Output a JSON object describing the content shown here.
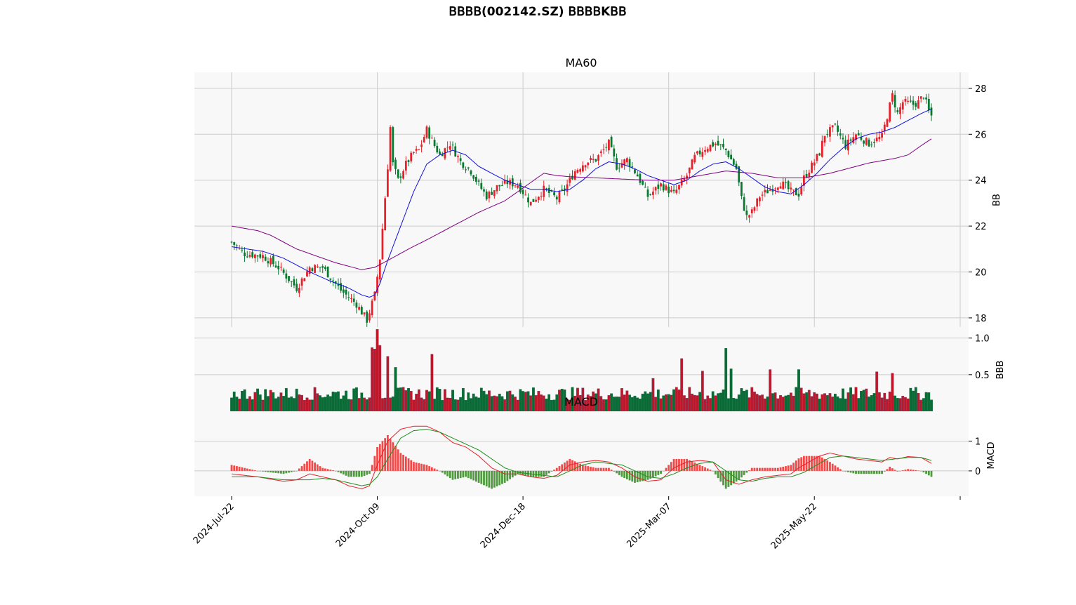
{
  "figure": {
    "title": "𝖡𝖡𝖡𝖡(002142.SZ) 𝖡𝖡𝖡𝖡K𝖡𝖡"
  },
  "chart_data": [
    {
      "type": "candlestick",
      "subtitle": "MA60",
      "ylabel": "𝖡𝖡",
      "ylim": [
        17.6,
        28.7
      ],
      "yticks": [
        18,
        20,
        22,
        24,
        26,
        28
      ],
      "x_tick_labels": [
        "2024-Jul-22",
        "2024-Oct-09",
        "2024-Dec-18",
        "2025-Mar-07",
        "2025-May-22"
      ],
      "x_tick_index": [
        0,
        56,
        112,
        168,
        224
      ],
      "n_bars": 270,
      "grid": true,
      "up_color": "#e8202a",
      "down_color": "#08792e",
      "close_anchors": [
        [
          0,
          21.3
        ],
        [
          5,
          20.8
        ],
        [
          12,
          20.7
        ],
        [
          18,
          20.2
        ],
        [
          25,
          19.3
        ],
        [
          30,
          20.2
        ],
        [
          35,
          20.2
        ],
        [
          42,
          19.2
        ],
        [
          48,
          18.6
        ],
        [
          52,
          17.9
        ],
        [
          55,
          19.0
        ],
        [
          57,
          20.6
        ],
        [
          58,
          21.9
        ],
        [
          60,
          24.6
        ],
        [
          61,
          26.3
        ],
        [
          62,
          24.7
        ],
        [
          64,
          24.0
        ],
        [
          67,
          24.7
        ],
        [
          70,
          25.2
        ],
        [
          72,
          25.3
        ],
        [
          75,
          26.2
        ],
        [
          78,
          25.5
        ],
        [
          80,
          25.1
        ],
        [
          84,
          25.6
        ],
        [
          88,
          24.8
        ],
        [
          92,
          24.4
        ],
        [
          95,
          23.8
        ],
        [
          98,
          23.3
        ],
        [
          102,
          23.7
        ],
        [
          106,
          23.9
        ],
        [
          110,
          23.8
        ],
        [
          115,
          23.0
        ],
        [
          120,
          23.6
        ],
        [
          125,
          23.2
        ],
        [
          128,
          23.6
        ],
        [
          132,
          24.4
        ],
        [
          136,
          24.8
        ],
        [
          140,
          24.9
        ],
        [
          145,
          25.6
        ],
        [
          148,
          24.6
        ],
        [
          152,
          24.9
        ],
        [
          156,
          24.2
        ],
        [
          160,
          23.3
        ],
        [
          165,
          23.8
        ],
        [
          170,
          23.4
        ],
        [
          175,
          24.2
        ],
        [
          178,
          25.0
        ],
        [
          182,
          25.4
        ],
        [
          186,
          25.6
        ],
        [
          190,
          25.3
        ],
        [
          194,
          24.5
        ],
        [
          196,
          23.2
        ],
        [
          198,
          22.4
        ],
        [
          200,
          22.6
        ],
        [
          203,
          23.3
        ],
        [
          207,
          23.6
        ],
        [
          211,
          23.9
        ],
        [
          215,
          23.5
        ],
        [
          218,
          23.4
        ],
        [
          220,
          24.1
        ],
        [
          224,
          24.8
        ],
        [
          226,
          25.2
        ],
        [
          228,
          26.0
        ],
        [
          232,
          26.3
        ],
        [
          236,
          25.5
        ],
        [
          240,
          26.0
        ],
        [
          245,
          25.6
        ],
        [
          250,
          25.9
        ],
        [
          252,
          26.8
        ],
        [
          254,
          27.7
        ],
        [
          256,
          26.9
        ],
        [
          258,
          27.4
        ],
        [
          262,
          27.3
        ],
        [
          264,
          27.4
        ],
        [
          266,
          27.7
        ],
        [
          268,
          27.0
        ],
        [
          269,
          26.8
        ]
      ],
      "ma_anchors": {
        "ma20": [
          [
            0,
            21.1
          ],
          [
            12,
            20.9
          ],
          [
            20,
            20.6
          ],
          [
            30,
            20.0
          ],
          [
            38,
            19.6
          ],
          [
            45,
            19.3
          ],
          [
            50,
            19.0
          ],
          [
            53,
            18.9
          ],
          [
            55,
            19.0
          ],
          [
            57,
            19.5
          ],
          [
            60,
            20.5
          ],
          [
            65,
            22.0
          ],
          [
            70,
            23.5
          ],
          [
            75,
            24.7
          ],
          [
            80,
            25.1
          ],
          [
            85,
            25.3
          ],
          [
            90,
            25.1
          ],
          [
            95,
            24.6
          ],
          [
            100,
            24.3
          ],
          [
            105,
            24.0
          ],
          [
            110,
            23.8
          ],
          [
            115,
            23.6
          ],
          [
            120,
            23.6
          ],
          [
            125,
            23.5
          ],
          [
            130,
            23.6
          ],
          [
            135,
            24.0
          ],
          [
            140,
            24.5
          ],
          [
            145,
            24.8
          ],
          [
            150,
            24.7
          ],
          [
            155,
            24.5
          ],
          [
            160,
            24.2
          ],
          [
            165,
            24.0
          ],
          [
            170,
            23.8
          ],
          [
            175,
            24.0
          ],
          [
            180,
            24.4
          ],
          [
            185,
            24.7
          ],
          [
            190,
            24.8
          ],
          [
            195,
            24.5
          ],
          [
            200,
            24.1
          ],
          [
            205,
            23.7
          ],
          [
            210,
            23.5
          ],
          [
            215,
            23.4
          ],
          [
            220,
            23.8
          ],
          [
            225,
            24.3
          ],
          [
            230,
            24.9
          ],
          [
            235,
            25.4
          ],
          [
            240,
            25.8
          ],
          [
            245,
            26.0
          ],
          [
            250,
            26.1
          ],
          [
            255,
            26.3
          ],
          [
            260,
            26.6
          ],
          [
            265,
            26.9
          ],
          [
            269,
            27.1
          ]
        ],
        "ma60": [
          [
            0,
            22.0
          ],
          [
            5,
            21.9
          ],
          [
            10,
            21.8
          ],
          [
            15,
            21.6
          ],
          [
            20,
            21.3
          ],
          [
            25,
            21.0
          ],
          [
            30,
            20.8
          ],
          [
            35,
            20.6
          ],
          [
            40,
            20.4
          ],
          [
            45,
            20.25
          ],
          [
            50,
            20.1
          ],
          [
            55,
            20.2
          ],
          [
            60,
            20.5
          ],
          [
            68,
            21.0
          ],
          [
            75,
            21.4
          ],
          [
            85,
            22.0
          ],
          [
            95,
            22.6
          ],
          [
            105,
            23.1
          ],
          [
            110,
            23.5
          ],
          [
            115,
            23.9
          ],
          [
            120,
            24.3
          ],
          [
            125,
            24.2
          ],
          [
            130,
            24.15
          ],
          [
            140,
            24.1
          ],
          [
            150,
            24.05
          ],
          [
            160,
            24.0
          ],
          [
            170,
            24.0
          ],
          [
            180,
            24.2
          ],
          [
            190,
            24.4
          ],
          [
            200,
            24.3
          ],
          [
            210,
            24.1
          ],
          [
            220,
            24.1
          ],
          [
            230,
            24.3
          ],
          [
            240,
            24.6
          ],
          [
            245,
            24.75
          ],
          [
            250,
            24.85
          ],
          [
            255,
            24.95
          ],
          [
            260,
            25.1
          ],
          [
            265,
            25.5
          ],
          [
            269,
            25.8
          ]
        ]
      }
    },
    {
      "type": "bar",
      "ylabel": "𝖡𝖡𝖡",
      "ylim": [
        0,
        1.15
      ],
      "yticks": [
        0.5,
        1.0
      ],
      "colors": {
        "up": "#c0162a",
        "down": "#0a6b37",
        "edge_up": "#7a3a5a"
      },
      "peak_values": [
        [
          54,
          0.87
        ],
        [
          55,
          0.85
        ],
        [
          56,
          1.12
        ],
        [
          57,
          0.9
        ],
        [
          60,
          0.75
        ],
        [
          63,
          0.6
        ],
        [
          77,
          0.78
        ],
        [
          162,
          0.45
        ],
        [
          173,
          0.72
        ],
        [
          181,
          0.55
        ],
        [
          190,
          0.86
        ],
        [
          192,
          0.58
        ],
        [
          207,
          0.57
        ],
        [
          218,
          0.57
        ],
        [
          248,
          0.54
        ],
        [
          254,
          0.52
        ]
      ]
    },
    {
      "type": "macd",
      "subtitle": "MACD",
      "ylabel": "MACD",
      "ylim": [
        -0.85,
        2.0
      ],
      "yticks": [
        0,
        1
      ],
      "colors": {
        "pos": "#f24949",
        "neg": "#4e9a3d",
        "dif": "#e8202a",
        "dea": "#1f8f1f"
      },
      "dif_anchors": [
        [
          0,
          -0.1
        ],
        [
          10,
          -0.2
        ],
        [
          20,
          -0.35
        ],
        [
          25,
          -0.3
        ],
        [
          30,
          -0.1
        ],
        [
          35,
          -0.2
        ],
        [
          40,
          -0.3
        ],
        [
          45,
          -0.5
        ],
        [
          50,
          -0.6
        ],
        [
          53,
          -0.5
        ],
        [
          56,
          0.2
        ],
        [
          60,
          1.0
        ],
        [
          65,
          1.4
        ],
        [
          70,
          1.5
        ],
        [
          75,
          1.5
        ],
        [
          80,
          1.3
        ],
        [
          85,
          0.95
        ],
        [
          90,
          0.8
        ],
        [
          95,
          0.5
        ],
        [
          100,
          0.1
        ],
        [
          105,
          -0.1
        ],
        [
          110,
          -0.1
        ],
        [
          115,
          -0.2
        ],
        [
          120,
          -0.25
        ],
        [
          125,
          -0.15
        ],
        [
          130,
          0.2
        ],
        [
          135,
          0.3
        ],
        [
          140,
          0.35
        ],
        [
          145,
          0.3
        ],
        [
          150,
          0.1
        ],
        [
          155,
          -0.2
        ],
        [
          160,
          -0.35
        ],
        [
          165,
          -0.3
        ],
        [
          170,
          0.1
        ],
        [
          175,
          0.3
        ],
        [
          180,
          0.35
        ],
        [
          185,
          0.3
        ],
        [
          190,
          -0.3
        ],
        [
          195,
          -0.45
        ],
        [
          200,
          -0.3
        ],
        [
          205,
          -0.2
        ],
        [
          210,
          -0.15
        ],
        [
          215,
          -0.1
        ],
        [
          218,
          0.1
        ],
        [
          222,
          0.3
        ],
        [
          226,
          0.5
        ],
        [
          230,
          0.6
        ],
        [
          235,
          0.5
        ],
        [
          240,
          0.4
        ],
        [
          245,
          0.35
        ],
        [
          250,
          0.3
        ],
        [
          253,
          0.45
        ],
        [
          256,
          0.4
        ],
        [
          260,
          0.48
        ],
        [
          265,
          0.45
        ],
        [
          269,
          0.25
        ]
      ],
      "dea_anchors": [
        [
          0,
          -0.2
        ],
        [
          10,
          -0.2
        ],
        [
          20,
          -0.3
        ],
        [
          25,
          -0.3
        ],
        [
          30,
          -0.3
        ],
        [
          35,
          -0.25
        ],
        [
          40,
          -0.3
        ],
        [
          45,
          -0.4
        ],
        [
          50,
          -0.5
        ],
        [
          53,
          -0.45
        ],
        [
          56,
          -0.2
        ],
        [
          60,
          0.4
        ],
        [
          65,
          1.1
        ],
        [
          70,
          1.35
        ],
        [
          75,
          1.4
        ],
        [
          80,
          1.3
        ],
        [
          85,
          1.1
        ],
        [
          90,
          0.9
        ],
        [
          95,
          0.7
        ],
        [
          100,
          0.4
        ],
        [
          105,
          0.1
        ],
        [
          110,
          -0.05
        ],
        [
          115,
          -0.1
        ],
        [
          120,
          -0.15
        ],
        [
          125,
          -0.2
        ],
        [
          130,
          0.0
        ],
        [
          135,
          0.2
        ],
        [
          140,
          0.3
        ],
        [
          145,
          0.25
        ],
        [
          150,
          0.2
        ],
        [
          155,
          0.0
        ],
        [
          160,
          -0.2
        ],
        [
          165,
          -0.25
        ],
        [
          170,
          -0.1
        ],
        [
          175,
          0.1
        ],
        [
          180,
          0.25
        ],
        [
          185,
          0.3
        ],
        [
          190,
          0.0
        ],
        [
          195,
          -0.3
        ],
        [
          200,
          -0.35
        ],
        [
          205,
          -0.25
        ],
        [
          210,
          -0.2
        ],
        [
          215,
          -0.2
        ],
        [
          220,
          -0.05
        ],
        [
          225,
          0.2
        ],
        [
          230,
          0.45
        ],
        [
          235,
          0.5
        ],
        [
          240,
          0.45
        ],
        [
          245,
          0.4
        ],
        [
          250,
          0.35
        ],
        [
          255,
          0.4
        ],
        [
          260,
          0.45
        ],
        [
          265,
          0.45
        ],
        [
          269,
          0.35
        ]
      ]
    }
  ]
}
